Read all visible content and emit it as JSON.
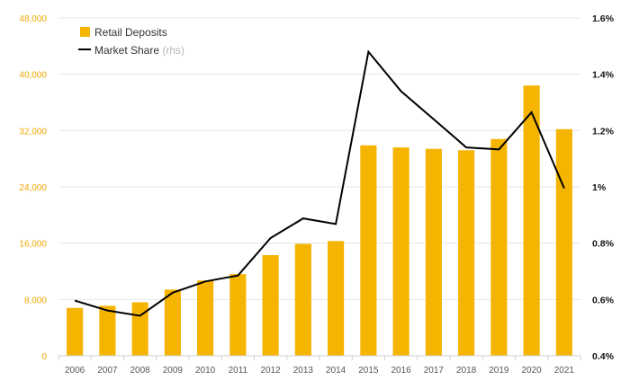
{
  "chart_data": {
    "type": "bar",
    "categories": [
      "2006",
      "2007",
      "2008",
      "2009",
      "2010",
      "2011",
      "2012",
      "2013",
      "2014",
      "2015",
      "2016",
      "2017",
      "2018",
      "2019",
      "2020",
      "2021"
    ],
    "series": [
      {
        "name": "Retail Deposits",
        "type": "bar",
        "axis": "left",
        "color": "#f5b400",
        "values": [
          6800,
          7100,
          7600,
          9400,
          10700,
          11600,
          14300,
          15900,
          16300,
          29900,
          29600,
          29400,
          29200,
          30800,
          38400,
          32200
        ]
      },
      {
        "name": "Market Share",
        "name_suffix": "(rhs)",
        "type": "line",
        "axis": "right",
        "color": "#000000",
        "values": [
          0.596,
          0.561,
          0.542,
          0.624,
          0.664,
          0.685,
          0.818,
          0.888,
          0.868,
          1.48,
          1.34,
          1.24,
          1.14,
          1.133,
          1.265,
          0.995
        ]
      }
    ],
    "yleft": {
      "lim": [
        0,
        48000
      ],
      "ticks": [
        0,
        8000,
        16000,
        24000,
        32000,
        40000,
        48000
      ],
      "tick_labels": [
        "0",
        "8,000",
        "16,000",
        "24,000",
        "32,000",
        "40,000",
        "48,000"
      ],
      "color": "#f0a800"
    },
    "yright": {
      "lim": [
        0.4,
        1.6
      ],
      "ticks": [
        0.4,
        0.6,
        0.8,
        1.0,
        1.2,
        1.4,
        1.6
      ],
      "tick_labels": [
        "0.4%",
        "0.6%",
        "0.8%",
        "1%",
        "1.2%",
        "1.4%",
        "1.6%"
      ]
    },
    "grid": true,
    "legend_position": "top-left",
    "title": "",
    "xlabel": "",
    "ylabel": ""
  }
}
